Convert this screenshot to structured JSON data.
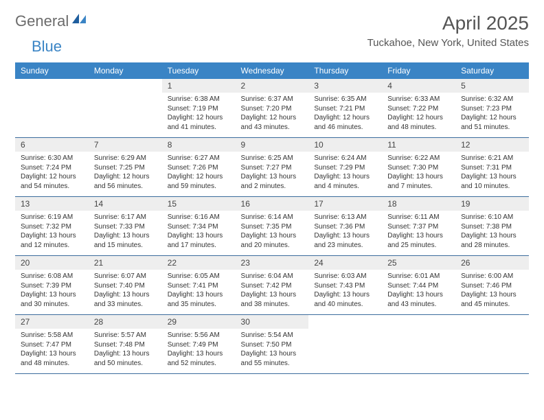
{
  "logo": {
    "general": "General",
    "blue": "Blue"
  },
  "title": "April 2025",
  "subtitle": "Tuckahoe, New York, United States",
  "colors": {
    "header_bg": "#3a84c5",
    "header_fg": "#ffffff",
    "daynum_bg": "#eeeeee",
    "rule": "#3a6b9c",
    "logo_gray": "#6b6b6b",
    "logo_blue": "#3a84c5"
  },
  "weekdays": [
    "Sunday",
    "Monday",
    "Tuesday",
    "Wednesday",
    "Thursday",
    "Friday",
    "Saturday"
  ],
  "weeks": [
    [
      null,
      null,
      {
        "n": "1",
        "sunrise": "6:38 AM",
        "sunset": "7:19 PM",
        "daylight": "12 hours and 41 minutes."
      },
      {
        "n": "2",
        "sunrise": "6:37 AM",
        "sunset": "7:20 PM",
        "daylight": "12 hours and 43 minutes."
      },
      {
        "n": "3",
        "sunrise": "6:35 AM",
        "sunset": "7:21 PM",
        "daylight": "12 hours and 46 minutes."
      },
      {
        "n": "4",
        "sunrise": "6:33 AM",
        "sunset": "7:22 PM",
        "daylight": "12 hours and 48 minutes."
      },
      {
        "n": "5",
        "sunrise": "6:32 AM",
        "sunset": "7:23 PM",
        "daylight": "12 hours and 51 minutes."
      }
    ],
    [
      {
        "n": "6",
        "sunrise": "6:30 AM",
        "sunset": "7:24 PM",
        "daylight": "12 hours and 54 minutes."
      },
      {
        "n": "7",
        "sunrise": "6:29 AM",
        "sunset": "7:25 PM",
        "daylight": "12 hours and 56 minutes."
      },
      {
        "n": "8",
        "sunrise": "6:27 AM",
        "sunset": "7:26 PM",
        "daylight": "12 hours and 59 minutes."
      },
      {
        "n": "9",
        "sunrise": "6:25 AM",
        "sunset": "7:27 PM",
        "daylight": "13 hours and 2 minutes."
      },
      {
        "n": "10",
        "sunrise": "6:24 AM",
        "sunset": "7:29 PM",
        "daylight": "13 hours and 4 minutes."
      },
      {
        "n": "11",
        "sunrise": "6:22 AM",
        "sunset": "7:30 PM",
        "daylight": "13 hours and 7 minutes."
      },
      {
        "n": "12",
        "sunrise": "6:21 AM",
        "sunset": "7:31 PM",
        "daylight": "13 hours and 10 minutes."
      }
    ],
    [
      {
        "n": "13",
        "sunrise": "6:19 AM",
        "sunset": "7:32 PM",
        "daylight": "13 hours and 12 minutes."
      },
      {
        "n": "14",
        "sunrise": "6:17 AM",
        "sunset": "7:33 PM",
        "daylight": "13 hours and 15 minutes."
      },
      {
        "n": "15",
        "sunrise": "6:16 AM",
        "sunset": "7:34 PM",
        "daylight": "13 hours and 17 minutes."
      },
      {
        "n": "16",
        "sunrise": "6:14 AM",
        "sunset": "7:35 PM",
        "daylight": "13 hours and 20 minutes."
      },
      {
        "n": "17",
        "sunrise": "6:13 AM",
        "sunset": "7:36 PM",
        "daylight": "13 hours and 23 minutes."
      },
      {
        "n": "18",
        "sunrise": "6:11 AM",
        "sunset": "7:37 PM",
        "daylight": "13 hours and 25 minutes."
      },
      {
        "n": "19",
        "sunrise": "6:10 AM",
        "sunset": "7:38 PM",
        "daylight": "13 hours and 28 minutes."
      }
    ],
    [
      {
        "n": "20",
        "sunrise": "6:08 AM",
        "sunset": "7:39 PM",
        "daylight": "13 hours and 30 minutes."
      },
      {
        "n": "21",
        "sunrise": "6:07 AM",
        "sunset": "7:40 PM",
        "daylight": "13 hours and 33 minutes."
      },
      {
        "n": "22",
        "sunrise": "6:05 AM",
        "sunset": "7:41 PM",
        "daylight": "13 hours and 35 minutes."
      },
      {
        "n": "23",
        "sunrise": "6:04 AM",
        "sunset": "7:42 PM",
        "daylight": "13 hours and 38 minutes."
      },
      {
        "n": "24",
        "sunrise": "6:03 AM",
        "sunset": "7:43 PM",
        "daylight": "13 hours and 40 minutes."
      },
      {
        "n": "25",
        "sunrise": "6:01 AM",
        "sunset": "7:44 PM",
        "daylight": "13 hours and 43 minutes."
      },
      {
        "n": "26",
        "sunrise": "6:00 AM",
        "sunset": "7:46 PM",
        "daylight": "13 hours and 45 minutes."
      }
    ],
    [
      {
        "n": "27",
        "sunrise": "5:58 AM",
        "sunset": "7:47 PM",
        "daylight": "13 hours and 48 minutes."
      },
      {
        "n": "28",
        "sunrise": "5:57 AM",
        "sunset": "7:48 PM",
        "daylight": "13 hours and 50 minutes."
      },
      {
        "n": "29",
        "sunrise": "5:56 AM",
        "sunset": "7:49 PM",
        "daylight": "13 hours and 52 minutes."
      },
      {
        "n": "30",
        "sunrise": "5:54 AM",
        "sunset": "7:50 PM",
        "daylight": "13 hours and 55 minutes."
      },
      null,
      null,
      null
    ]
  ],
  "labels": {
    "sunrise": "Sunrise:",
    "sunset": "Sunset:",
    "daylight": "Daylight:"
  }
}
